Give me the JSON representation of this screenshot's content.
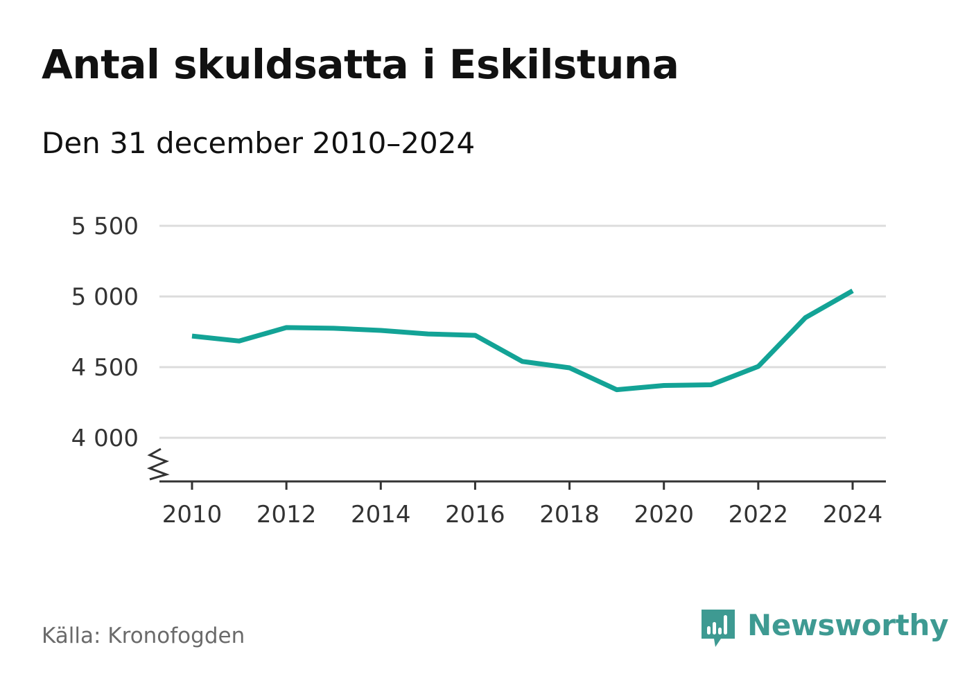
{
  "title": "Antal skuldsatta i Eskilstuna",
  "subtitle": "Den 31 december 2010–2024",
  "source": "Källa: Kronofogden",
  "brand": {
    "name": "Newsworthy",
    "color": "#3e9a92",
    "icon": "newsworthy-bar-chart-logo-icon"
  },
  "chart_data": {
    "type": "line",
    "title": "Antal skuldsatta i Eskilstuna",
    "subtitle": "Den 31 december 2010–2024",
    "x": [
      2010,
      2011,
      2012,
      2013,
      2014,
      2015,
      2016,
      2017,
      2018,
      2019,
      2020,
      2021,
      2022,
      2023,
      2024
    ],
    "series": [
      {
        "values": [
          4720,
          4685,
          4780,
          4775,
          4760,
          4735,
          4725,
          4540,
          4495,
          4340,
          4370,
          4375,
          4505,
          4850,
          5040
        ],
        "color": "#13a396"
      }
    ],
    "xticks": [
      2010,
      2012,
      2014,
      2016,
      2018,
      2020,
      2022,
      2024
    ],
    "xtick_labels": [
      "2010",
      "2012",
      "2014",
      "2016",
      "2018",
      "2020",
      "2022",
      "2024"
    ],
    "yticks": [
      4000,
      4500,
      5000,
      5500
    ],
    "ytick_labels": [
      "4 000",
      "4 500",
      "5 000",
      "5 500"
    ],
    "ylim": [
      4000,
      5500
    ],
    "y_axis_break": true,
    "grid": true,
    "xlabel": "",
    "ylabel": ""
  }
}
